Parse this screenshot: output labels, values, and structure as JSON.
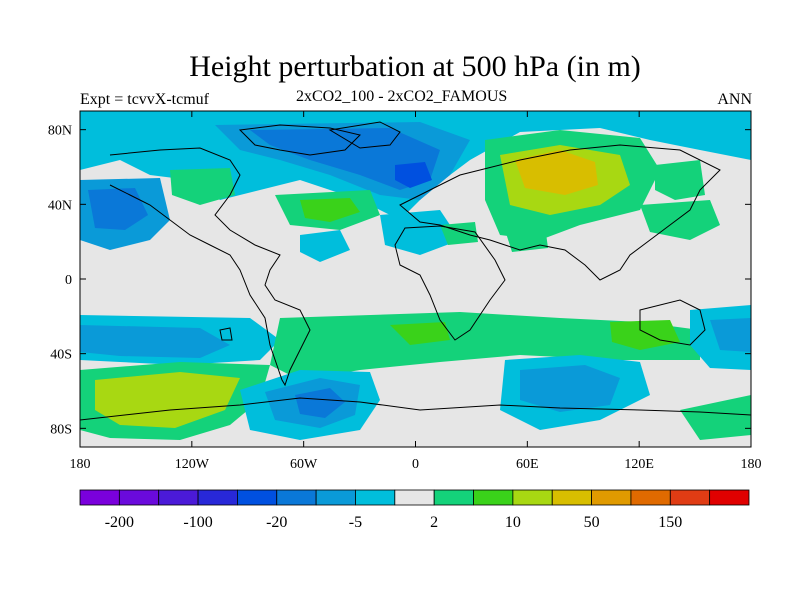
{
  "title": "Height perturbation at 500 hPa (in m)",
  "left_string": "Expt = tcvvX-tcmuf",
  "center_string": "2xCO2_100 - 2xCO2_FAMOUS",
  "right_string": "ANN",
  "map": {
    "projection": "cylindrical-equidistant",
    "lon_range": [
      -180,
      180
    ],
    "lat_range": [
      -90,
      90
    ],
    "lon_tick_labels": [
      "180",
      "120W",
      "60W",
      "0",
      "60E",
      "120E",
      "180"
    ],
    "lat_tick_labels": [
      "80N",
      "40N",
      "0",
      "40S",
      "80S"
    ],
    "background_color": "#e6e6e6"
  },
  "colorbar": {
    "colors": [
      "#7a00dc",
      "#6a0adc",
      "#4b1ad8",
      "#2828d8",
      "#0050e0",
      "#0a78d8",
      "#0a9ad8",
      "#00bedc",
      "#e6e6e6",
      "#14d27a",
      "#3ad21a",
      "#a8d812",
      "#d8be00",
      "#e09a00",
      "#e06a00",
      "#e03c14",
      "#e00000"
    ],
    "labels": [
      "-200",
      "-100",
      "-20",
      "-5",
      "2",
      "10",
      "50",
      "150"
    ]
  }
}
